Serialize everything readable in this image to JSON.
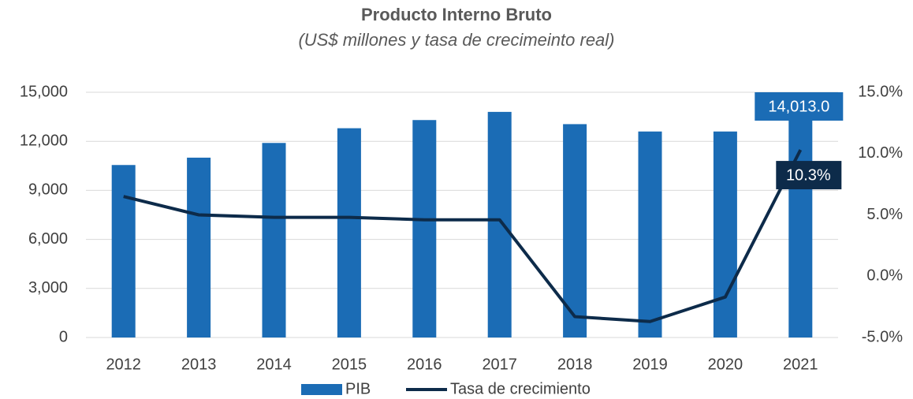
{
  "chart_data": {
    "type": "bar_line",
    "title": "Producto Interno Bruto",
    "subtitle": "(US$ millones y tasa de crecimeinto real)",
    "categories": [
      "2012",
      "2013",
      "2014",
      "2015",
      "2016",
      "2017",
      "2018",
      "2019",
      "2020",
      "2021"
    ],
    "series": [
      {
        "name": "PIB",
        "type": "bar",
        "color": "#1b6cb5",
        "values": [
          10550,
          11000,
          11900,
          12800,
          13300,
          13800,
          13050,
          12600,
          12600,
          14013
        ],
        "value_labels": [
          null,
          null,
          null,
          null,
          null,
          null,
          null,
          null,
          null,
          "14,013.0"
        ]
      },
      {
        "name": "Tasa de crecimiento",
        "type": "line",
        "axis": "y2",
        "color": "#0d2b4a",
        "values": [
          6.5,
          5.0,
          4.8,
          4.8,
          4.6,
          4.6,
          -3.3,
          -3.7,
          -1.7,
          10.3
        ],
        "value_labels": [
          null,
          null,
          null,
          null,
          null,
          null,
          null,
          null,
          null,
          "10.3%"
        ]
      }
    ],
    "ylim": [
      0,
      15000
    ],
    "yticks": [
      0,
      {
        "value": 3000,
        "label": "3,000"
      },
      {
        "value": 6000,
        "label": "6,000"
      },
      {
        "value": 9000,
        "label": "9,000"
      },
      {
        "value": 12000,
        "label": "12,000"
      },
      {
        "value": 15000,
        "label": "15,000"
      }
    ],
    "y2lim": [
      -5,
      15
    ],
    "y2ticks": [
      {
        "value": -5,
        "label": "-5.0%"
      },
      {
        "value": 0,
        "label": "0.0%"
      },
      {
        "value": 5,
        "label": "5.0%"
      },
      {
        "value": 10,
        "label": "10.0%"
      },
      {
        "value": 15,
        "label": "15.0%"
      }
    ],
    "grid": true,
    "legend": "bottom"
  }
}
